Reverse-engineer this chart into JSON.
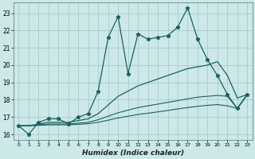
{
  "xlabel": "Humidex (Indice chaleur)",
  "bg_color": "#cce8e8",
  "grid_color": "#aacccc",
  "line_color": "#1a6060",
  "xlim": [
    -0.5,
    23.5
  ],
  "ylim": [
    15.7,
    23.6
  ],
  "yticks": [
    16,
    17,
    18,
    19,
    20,
    21,
    22,
    23
  ],
  "xticks": [
    0,
    1,
    2,
    3,
    4,
    5,
    6,
    7,
    8,
    9,
    10,
    11,
    12,
    13,
    14,
    15,
    16,
    17,
    18,
    19,
    20,
    21,
    22,
    23
  ],
  "series1_x": [
    0,
    1,
    2,
    3,
    4,
    5,
    6,
    7,
    8,
    9,
    10,
    11,
    12,
    13,
    14,
    15,
    16,
    17,
    18,
    19,
    20,
    21,
    22,
    23
  ],
  "series1_y": [
    16.5,
    16.0,
    16.7,
    16.9,
    16.9,
    16.6,
    17.0,
    17.2,
    18.5,
    21.6,
    22.8,
    19.5,
    21.8,
    21.5,
    21.6,
    21.7,
    22.2,
    23.3,
    21.5,
    20.3,
    19.4,
    18.3,
    17.5,
    18.3
  ],
  "series2_x": [
    0,
    1,
    2,
    3,
    4,
    5,
    6,
    7,
    8,
    9,
    10,
    11,
    12,
    13,
    14,
    15,
    16,
    17,
    18,
    19,
    20,
    21,
    22,
    23
  ],
  "series2_y": [
    16.5,
    16.5,
    16.6,
    16.7,
    16.7,
    16.7,
    16.8,
    16.9,
    17.2,
    17.7,
    18.2,
    18.5,
    18.8,
    19.0,
    19.2,
    19.4,
    19.6,
    19.8,
    19.9,
    20.0,
    20.2,
    19.4,
    18.1,
    18.3
  ],
  "series3_x": [
    0,
    1,
    2,
    3,
    4,
    5,
    6,
    7,
    8,
    9,
    10,
    11,
    12,
    13,
    14,
    15,
    16,
    17,
    18,
    19,
    20,
    21,
    22,
    23
  ],
  "series3_y": [
    16.5,
    16.5,
    16.55,
    16.6,
    16.6,
    16.6,
    16.65,
    16.7,
    16.85,
    17.05,
    17.25,
    17.4,
    17.55,
    17.65,
    17.75,
    17.85,
    17.95,
    18.05,
    18.15,
    18.2,
    18.25,
    18.2,
    17.5,
    18.3
  ],
  "series4_x": [
    0,
    1,
    2,
    3,
    4,
    5,
    6,
    7,
    8,
    9,
    10,
    11,
    12,
    13,
    14,
    15,
    16,
    17,
    18,
    19,
    20,
    21,
    22,
    23
  ],
  "series4_y": [
    16.5,
    16.5,
    16.52,
    16.55,
    16.55,
    16.55,
    16.58,
    16.62,
    16.7,
    16.82,
    16.95,
    17.05,
    17.15,
    17.22,
    17.3,
    17.38,
    17.47,
    17.55,
    17.62,
    17.68,
    17.72,
    17.65,
    17.5,
    18.3
  ]
}
